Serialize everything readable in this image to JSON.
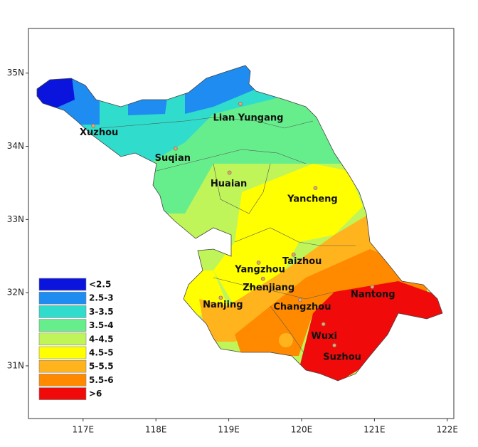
{
  "map": {
    "xlim": [
      116.25,
      122.09
    ],
    "ylim": [
      30.28,
      35.61
    ],
    "xticks": [
      {
        "value": 117,
        "label": "117E"
      },
      {
        "value": 118,
        "label": "118E"
      },
      {
        "value": 119,
        "label": "119E"
      },
      {
        "value": 120,
        "label": "120E"
      },
      {
        "value": 121,
        "label": "121E"
      },
      {
        "value": 122,
        "label": "122E"
      }
    ],
    "yticks": [
      {
        "value": 31,
        "label": "31N"
      },
      {
        "value": 32,
        "label": "32N"
      },
      {
        "value": 33,
        "label": "33N"
      },
      {
        "value": 34,
        "label": "34N"
      },
      {
        "value": 35,
        "label": "35N"
      }
    ],
    "cities": [
      {
        "name": "Xuzhou",
        "lon": 117.14,
        "lat": 34.28
      },
      {
        "name": "Lian Yungang",
        "lon": 119.16,
        "lat": 34.58
      },
      {
        "name": "Suqian",
        "lon": 118.27,
        "lat": 33.97
      },
      {
        "name": "Huaian",
        "lon": 119.01,
        "lat": 33.64
      },
      {
        "name": "Yancheng",
        "lon": 120.19,
        "lat": 33.43
      },
      {
        "name": "Taizhou",
        "lon": 119.89,
        "lat": 32.52
      },
      {
        "name": "Yangzhou",
        "lon": 119.41,
        "lat": 32.41
      },
      {
        "name": "Zhenjiang",
        "lon": 119.47,
        "lat": 32.19
      },
      {
        "name": "Nanjing",
        "lon": 118.89,
        "lat": 31.93
      },
      {
        "name": "Changzhou",
        "lon": 119.98,
        "lat": 31.9
      },
      {
        "name": "Nantong",
        "lon": 120.97,
        "lat": 32.08
      },
      {
        "name": "Wuxi",
        "lon": 120.3,
        "lat": 31.57
      },
      {
        "name": "Suzhou",
        "lon": 120.45,
        "lat": 31.28
      }
    ],
    "legend": [
      {
        "label": "<2.5",
        "color": "#0a14dc"
      },
      {
        "label": "2.5-3",
        "color": "#1e8cf0"
      },
      {
        "label": "3-3.5",
        "color": "#30dccc"
      },
      {
        "label": "3.5-4",
        "color": "#66ee8c"
      },
      {
        "label": "4-4.5",
        "color": "#c0f55a"
      },
      {
        "label": "4.5-5",
        "color": "#ffff00"
      },
      {
        "label": "5-5.5",
        "color": "#ffb41e"
      },
      {
        "label": "5.5-6",
        "color": "#ff8a00"
      },
      {
        "label": ">6",
        "color": "#f00a0a"
      }
    ]
  }
}
